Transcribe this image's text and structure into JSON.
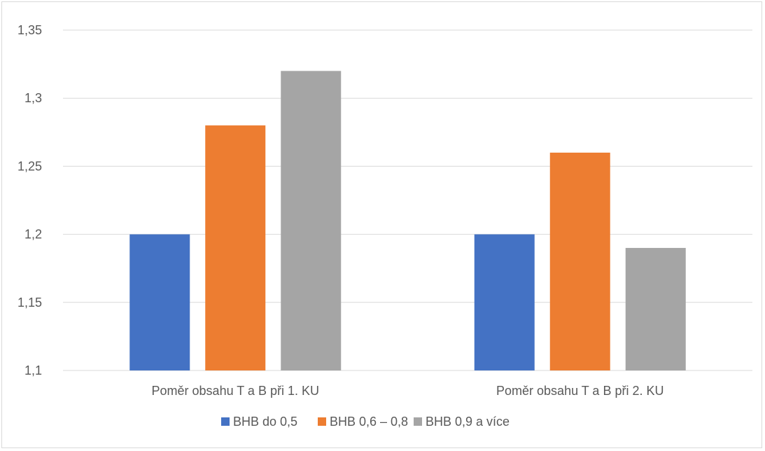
{
  "chart_data": {
    "type": "bar",
    "title": "",
    "xlabel": "",
    "ylabel": "",
    "categories": [
      "Poměr obsahu T a B při 1. KU",
      "Poměr obsahu T a B při 2. KU"
    ],
    "series": [
      {
        "name": "BHB do 0,5",
        "values": [
          1.2,
          1.2
        ],
        "color": "#4472C4"
      },
      {
        "name": "BHB 0,6 – 0,8",
        "values": [
          1.28,
          1.26
        ],
        "color": "#ED7D31"
      },
      {
        "name": "BHB 0,9 a více",
        "values": [
          1.32,
          1.19
        ],
        "color": "#A5A5A5"
      }
    ],
    "ylim": [
      1.1,
      1.35
    ],
    "yticks": [
      1.1,
      1.15,
      1.2,
      1.25,
      1.3,
      1.35
    ],
    "ytick_labels": [
      "1,1",
      "1,15",
      "1,2",
      "1,25",
      "1,3",
      "1,35"
    ],
    "grid": true,
    "legend_position": "bottom",
    "gridline_color": "#d9d9d9"
  }
}
